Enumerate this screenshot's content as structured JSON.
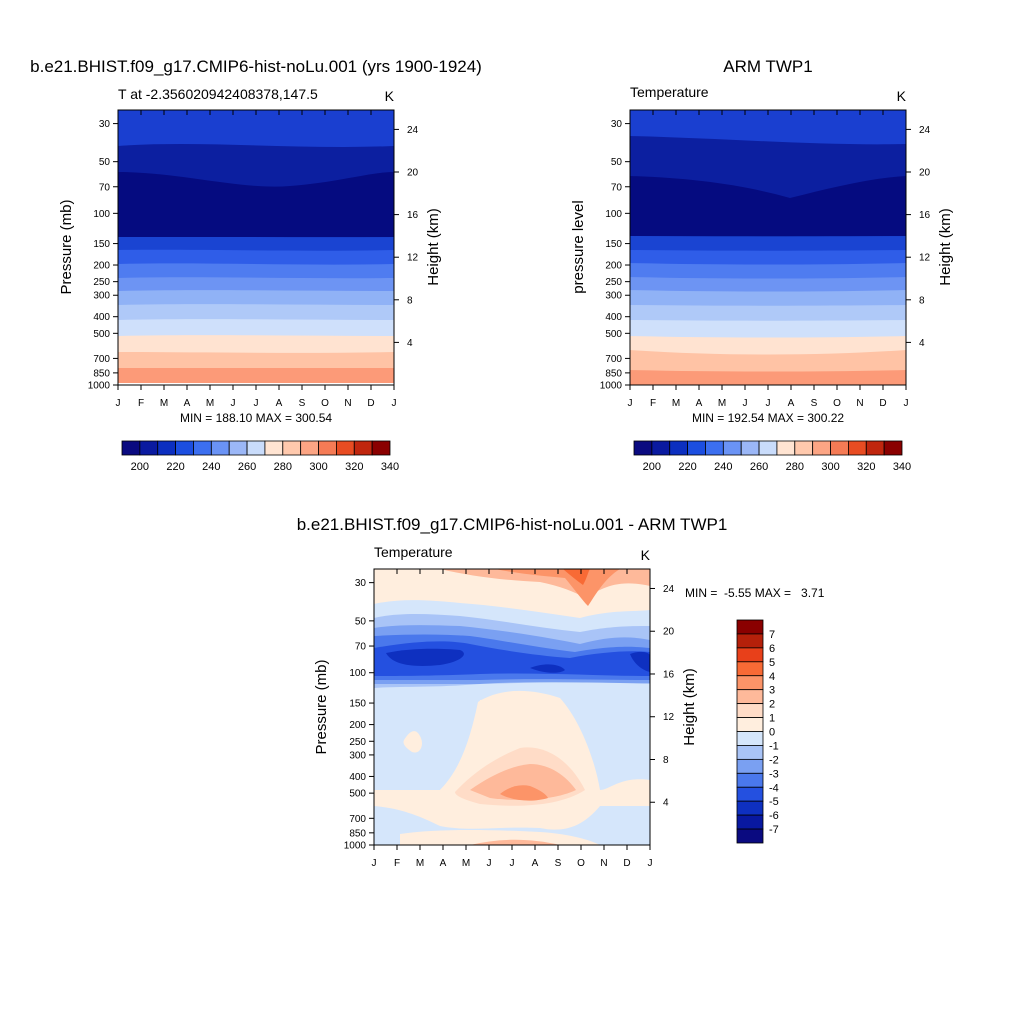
{
  "chart_data": [
    {
      "type": "heatmap",
      "title": "b.e21.BHIST.f09_g17.CMIP6-hist-noLu.001 (yrs 1900-1924)",
      "left_label": "T at -2.356020942408378,147.5",
      "right_label": "K",
      "ylabel": "Pressure (mb)",
      "ylabel_right": "Height (km)",
      "stats": "MIN = 188.10 MAX = 300.54",
      "x_ticks": [
        "J",
        "F",
        "M",
        "A",
        "M",
        "J",
        "J",
        "A",
        "S",
        "O",
        "N",
        "D",
        "J"
      ],
      "y_ticks": [
        "30",
        "50",
        "70",
        "100",
        "150",
        "200",
        "250",
        "300",
        "400",
        "500",
        "700",
        "850",
        "1000"
      ],
      "y_ticks_right": [
        "4",
        "8",
        "12",
        "16",
        "20",
        "24"
      ],
      "colorbar_labels": [
        "200",
        "220",
        "240",
        "260",
        "280",
        "300",
        "320",
        "340"
      ],
      "colors": [
        "#0a0a80",
        "#0a1aa0",
        "#0c2fc0",
        "#1c4ee0",
        "#3c6ff0",
        "#6a93f5",
        "#9bb7f7",
        "#c9dcfb",
        "#ffe4d2",
        "#ffc9ad",
        "#fca584",
        "#f57b55",
        "#e84c22",
        "#c0260e",
        "#8a0000"
      ],
      "min": 188.1,
      "max": 300.54
    },
    {
      "type": "heatmap",
      "title": "ARM TWP1",
      "left_label": "Temperature",
      "right_label": "K",
      "ylabel": "pressure level",
      "ylabel_right": "Height (km)",
      "stats": "MIN = 192.54 MAX = 300.22",
      "x_ticks": [
        "J",
        "F",
        "M",
        "A",
        "M",
        "J",
        "J",
        "A",
        "S",
        "O",
        "N",
        "D",
        "J"
      ],
      "y_ticks": [
        "30",
        "50",
        "70",
        "100",
        "150",
        "200",
        "250",
        "300",
        "400",
        "500",
        "700",
        "850",
        "1000"
      ],
      "y_ticks_right": [
        "4",
        "8",
        "12",
        "16",
        "20",
        "24"
      ],
      "colorbar_labels": [
        "200",
        "220",
        "240",
        "260",
        "280",
        "300",
        "320",
        "340"
      ],
      "colors": [
        "#0a0a80",
        "#0a1aa0",
        "#0c2fc0",
        "#1c4ee0",
        "#3c6ff0",
        "#6a93f5",
        "#9bb7f7",
        "#c9dcfb",
        "#ffe4d2",
        "#ffc9ad",
        "#fca584",
        "#f57b55",
        "#e84c22",
        "#c0260e",
        "#8a0000"
      ],
      "min": 192.54,
      "max": 300.22
    },
    {
      "type": "heatmap",
      "title": "b.e21.BHIST.f09_g17.CMIP6-hist-noLu.001 - ARM TWP1",
      "left_label": "Temperature",
      "right_label": "K",
      "ylabel": "Pressure (mb)",
      "ylabel_right": "Height (km)",
      "stats": "MIN =  -5.55 MAX =   3.71",
      "x_ticks": [
        "J",
        "F",
        "M",
        "A",
        "M",
        "J",
        "J",
        "A",
        "S",
        "O",
        "N",
        "D",
        "J"
      ],
      "y_ticks": [
        "30",
        "50",
        "70",
        "100",
        "150",
        "200",
        "250",
        "300",
        "400",
        "500",
        "700",
        "850",
        "1000"
      ],
      "y_ticks_right": [
        "4",
        "8",
        "12",
        "16",
        "20",
        "24"
      ],
      "colorbar_labels": [
        "7",
        "6",
        "5",
        "4",
        "3",
        "2",
        "1",
        "0",
        "-1",
        "-2",
        "-3",
        "-4",
        "-5",
        "-6",
        "-7"
      ],
      "colors": [
        "#8a0000",
        "#b5200a",
        "#e8401a",
        "#f86a35",
        "#fc9468",
        "#feb99a",
        "#ffdcc7",
        "#ffeede",
        "#d5e6fb",
        "#a9c4f7",
        "#7aa0f2",
        "#4a78ec",
        "#2450e0",
        "#0e30c0",
        "#0818a0",
        "#0a0a80"
      ],
      "min": -5.55,
      "max": 3.71
    }
  ]
}
